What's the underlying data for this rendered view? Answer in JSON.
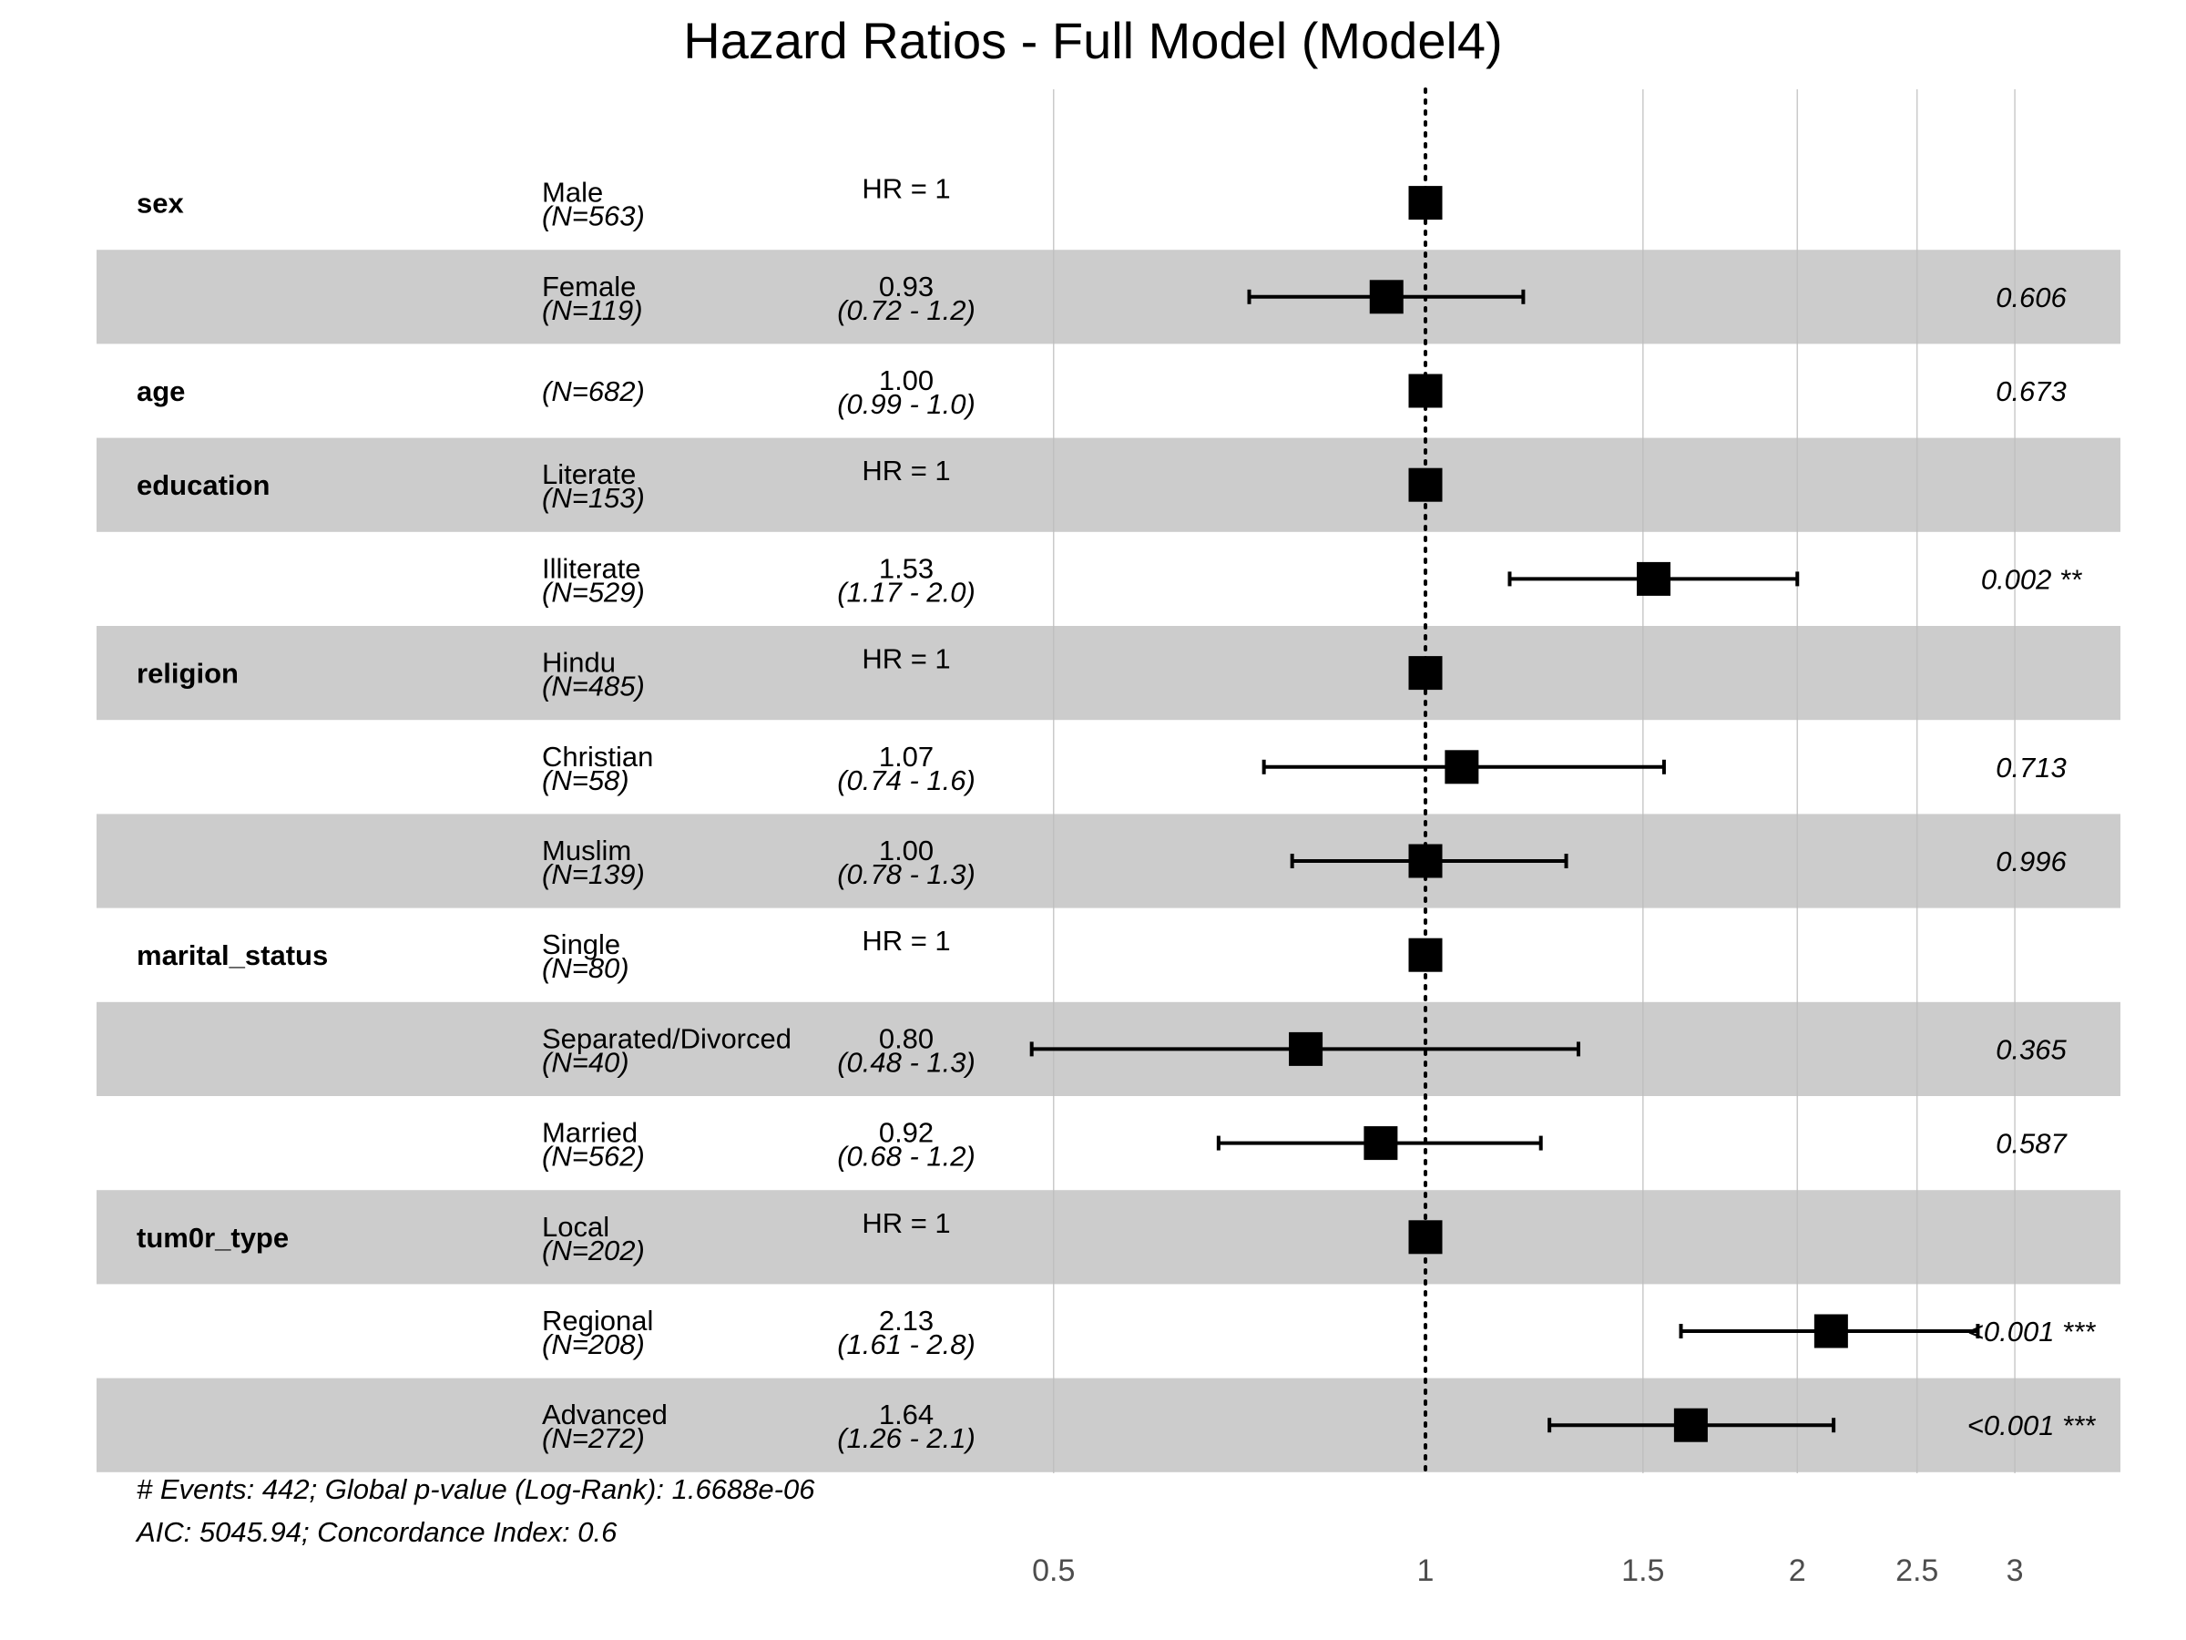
{
  "title": "Hazard Ratios - Full Model (Model4)",
  "chart_data": {
    "type": "forest",
    "x_scale": "log",
    "xlim": [
      0.465,
      3.65
    ],
    "x_ticks": [
      "0.5",
      "1",
      "1.5",
      "2",
      "2.5",
      "3"
    ],
    "reference_line": 1,
    "rows": [
      {
        "variable": "sex",
        "level": "Male",
        "n": "(N=563)",
        "hr": 1.0,
        "lo": null,
        "hi": null,
        "hr_text": "HR = 1",
        "ci_text": "",
        "p_text": "",
        "shaded": false
      },
      {
        "variable": "",
        "level": "Female",
        "n": "(N=119)",
        "hr": 0.93,
        "lo": 0.72,
        "hi": 1.2,
        "hr_text": "0.93",
        "ci_text": "(0.72 - 1.2)",
        "p_text": "0.606",
        "shaded": true
      },
      {
        "variable": "age",
        "level": "",
        "n": "(N=682)",
        "hr": 1.0,
        "lo": 0.99,
        "hi": 1.0,
        "hr_text": "1.00",
        "ci_text": "(0.99 - 1.0)",
        "p_text": "0.673",
        "shaded": false
      },
      {
        "variable": "education",
        "level": "Literate",
        "n": "(N=153)",
        "hr": 1.0,
        "lo": null,
        "hi": null,
        "hr_text": "HR = 1",
        "ci_text": "",
        "p_text": "",
        "shaded": true
      },
      {
        "variable": "",
        "level": "Illiterate",
        "n": "(N=529)",
        "hr": 1.53,
        "lo": 1.17,
        "hi": 2.0,
        "hr_text": "1.53",
        "ci_text": "(1.17 - 2.0)",
        "p_text": "0.002 **",
        "shaded": false
      },
      {
        "variable": "religion",
        "level": "Hindu",
        "n": "(N=485)",
        "hr": 1.0,
        "lo": null,
        "hi": null,
        "hr_text": "HR = 1",
        "ci_text": "",
        "p_text": "",
        "shaded": true
      },
      {
        "variable": "",
        "level": "Christian",
        "n": "(N=58)",
        "hr": 1.07,
        "lo": 0.74,
        "hi": 1.56,
        "hr_text": "1.07",
        "ci_text": "(0.74 - 1.6)",
        "p_text": "0.713",
        "shaded": false
      },
      {
        "variable": "",
        "level": "Muslim",
        "n": "(N=139)",
        "hr": 1.0,
        "lo": 0.78,
        "hi": 1.3,
        "hr_text": "1.00",
        "ci_text": "(0.78 - 1.3)",
        "p_text": "0.996",
        "shaded": true
      },
      {
        "variable": "marital_status",
        "level": "Single",
        "n": "(N=80)",
        "hr": 1.0,
        "lo": null,
        "hi": null,
        "hr_text": "HR = 1",
        "ci_text": "",
        "p_text": "",
        "shaded": false
      },
      {
        "variable": "",
        "level": "Separated/Divorced",
        "n": "(N=40)",
        "hr": 0.8,
        "lo": 0.48,
        "hi": 1.33,
        "hr_text": "0.80",
        "ci_text": "(0.48 - 1.3)",
        "p_text": "0.365",
        "shaded": true
      },
      {
        "variable": "",
        "level": "Married",
        "n": "(N=562)",
        "hr": 0.92,
        "lo": 0.68,
        "hi": 1.24,
        "hr_text": "0.92",
        "ci_text": "(0.68 - 1.2)",
        "p_text": "0.587",
        "shaded": false
      },
      {
        "variable": "tum0r_type",
        "level": "Local",
        "n": "(N=202)",
        "hr": 1.0,
        "lo": null,
        "hi": null,
        "hr_text": "HR = 1",
        "ci_text": "",
        "p_text": "",
        "shaded": true
      },
      {
        "variable": "",
        "level": "Regional",
        "n": "(N=208)",
        "hr": 2.13,
        "lo": 1.61,
        "hi": 2.8,
        "hr_text": "2.13",
        "ci_text": "(1.61 - 2.8)",
        "p_text": "<0.001 ***",
        "shaded": false
      },
      {
        "variable": "",
        "level": "Advanced",
        "n": "(N=272)",
        "hr": 1.64,
        "lo": 1.26,
        "hi": 2.14,
        "hr_text": "1.64",
        "ci_text": "(1.26 - 2.1)",
        "p_text": "<0.001 ***",
        "shaded": true
      }
    ],
    "footnotes": [
      "# Events: 442; Global p-value (Log-Rank): 1.6688e-06",
      "AIC: 5045.94; Concordance Index: 0.6"
    ]
  }
}
